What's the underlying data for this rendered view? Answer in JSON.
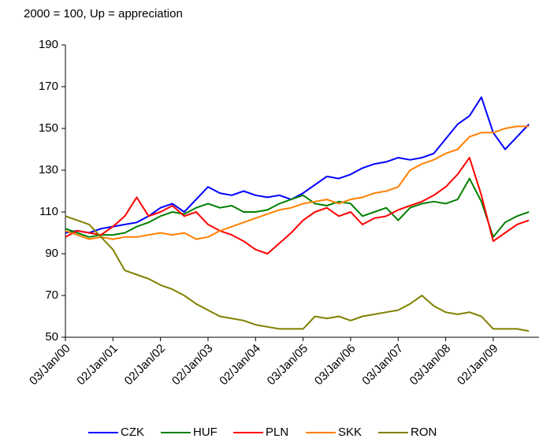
{
  "chart_data": {
    "type": "line",
    "subtitle": "2000 = 100,  Up = appreciation",
    "categories": [
      "03/Jan/00",
      null,
      null,
      null,
      "02/Jan/01",
      null,
      null,
      null,
      "02/Jan/02",
      null,
      null,
      null,
      "02/Jan/03",
      null,
      null,
      null,
      "02/Jan/04",
      null,
      null,
      null,
      "03/Jan/05",
      null,
      null,
      null,
      "03/Jan/06",
      null,
      null,
      null,
      "03/Jan/07",
      null,
      null,
      null,
      "03/Jan/08",
      null,
      null,
      null,
      "02/Jan/09",
      null,
      null,
      null
    ],
    "series": [
      {
        "name": "CZK",
        "color": "#0000ff",
        "values": [
          100,
          101,
          100,
          102,
          103,
          104,
          105,
          108,
          112,
          114,
          110,
          116,
          122,
          119,
          118,
          120,
          118,
          117,
          118,
          116,
          119,
          123,
          127,
          126,
          128,
          131,
          133,
          134,
          136,
          135,
          136,
          138,
          145,
          152,
          156,
          165,
          148,
          140,
          146,
          152
        ]
      },
      {
        "name": "HUF",
        "color": "#008000",
        "values": [
          102,
          100,
          98,
          99,
          99,
          100,
          103,
          105,
          108,
          110,
          109,
          112,
          114,
          112,
          113,
          110,
          110,
          111,
          114,
          116,
          118,
          114,
          113,
          115,
          114,
          108,
          110,
          112,
          106,
          112,
          114,
          115,
          114,
          116,
          126,
          115,
          98,
          105,
          108,
          110
        ]
      },
      {
        "name": "PLN",
        "color": "#ff0000",
        "values": [
          98,
          101,
          100,
          99,
          103,
          108,
          117,
          108,
          110,
          113,
          108,
          110,
          104,
          101,
          99,
          96,
          92,
          90,
          95,
          100,
          106,
          110,
          112,
          108,
          110,
          104,
          107,
          108,
          111,
          113,
          115,
          118,
          122,
          128,
          136,
          118,
          96,
          100,
          104,
          106
        ]
      },
      {
        "name": "SKK",
        "color": "#ff8000",
        "values": [
          101,
          99,
          97,
          98,
          97,
          98,
          98,
          99,
          100,
          99,
          100,
          97,
          98,
          101,
          103,
          105,
          107,
          109,
          111,
          112,
          114,
          115,
          116,
          114,
          116,
          117,
          119,
          120,
          122,
          130,
          133,
          135,
          138,
          140,
          146,
          148,
          148,
          150,
          151,
          151
        ]
      },
      {
        "name": "RON",
        "color": "#808000",
        "values": [
          108,
          106,
          104,
          98,
          92,
          82,
          80,
          78,
          75,
          73,
          70,
          66,
          63,
          60,
          59,
          58,
          56,
          55,
          54,
          54,
          54,
          60,
          59,
          60,
          58,
          60,
          61,
          62,
          63,
          66,
          70,
          65,
          62,
          61,
          62,
          60,
          54,
          54,
          54,
          53
        ]
      }
    ],
    "ylim": [
      50,
      190
    ],
    "yticks": [
      50,
      70,
      90,
      110,
      130,
      150,
      170,
      190
    ],
    "grid": false,
    "legend": "bottom"
  }
}
